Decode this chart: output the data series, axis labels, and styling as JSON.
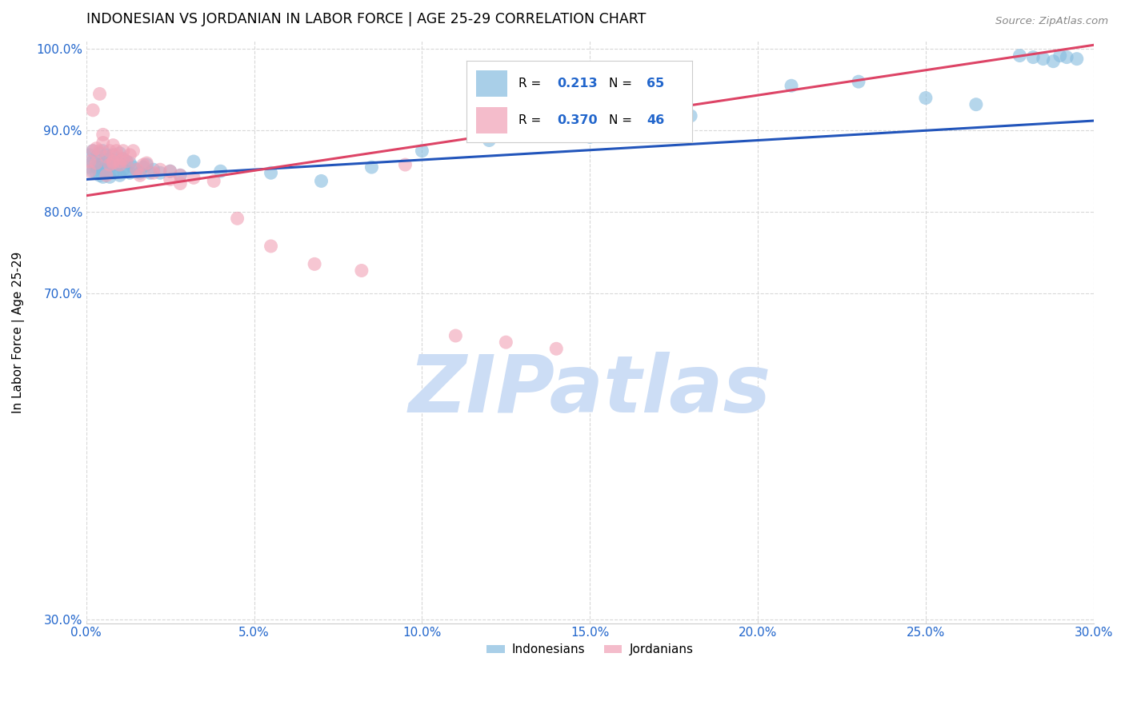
{
  "title": "INDONESIAN VS JORDANIAN IN LABOR FORCE | AGE 25-29 CORRELATION CHART",
  "source": "Source: ZipAtlas.com",
  "ylabel": "In Labor Force | Age 25-29",
  "xlim": [
    0.0,
    0.3
  ],
  "ylim": [
    0.295,
    1.01
  ],
  "xtick_labels": [
    "0.0%",
    "5.0%",
    "10.0%",
    "15.0%",
    "20.0%",
    "25.0%",
    "30.0%"
  ],
  "xtick_vals": [
    0.0,
    0.05,
    0.1,
    0.15,
    0.2,
    0.25,
    0.3
  ],
  "ytick_labels": [
    "30.0%",
    "70.0%",
    "80.0%",
    "90.0%",
    "100.0%"
  ],
  "ytick_vals": [
    0.3,
    0.7,
    0.8,
    0.9,
    1.0
  ],
  "blue_R": "0.213",
  "blue_N": "65",
  "pink_R": "0.370",
  "pink_N": "46",
  "blue_color": "#85bbdf",
  "pink_color": "#f0a0b5",
  "blue_line_color": "#2255bb",
  "pink_line_color": "#dd4466",
  "accent_color": "#2266cc",
  "watermark_color": "#ccddf5",
  "blue_scatter_x": [
    0.001,
    0.001,
    0.002,
    0.002,
    0.002,
    0.003,
    0.003,
    0.003,
    0.004,
    0.004,
    0.004,
    0.005,
    0.005,
    0.005,
    0.005,
    0.006,
    0.006,
    0.006,
    0.007,
    0.007,
    0.007,
    0.008,
    0.008,
    0.008,
    0.009,
    0.009,
    0.01,
    0.01,
    0.01,
    0.011,
    0.011,
    0.012,
    0.012,
    0.013,
    0.013,
    0.014,
    0.015,
    0.016,
    0.017,
    0.018,
    0.019,
    0.02,
    0.022,
    0.025,
    0.028,
    0.032,
    0.04,
    0.055,
    0.07,
    0.085,
    0.1,
    0.12,
    0.15,
    0.18,
    0.21,
    0.23,
    0.25,
    0.265,
    0.278,
    0.282,
    0.285,
    0.288,
    0.29,
    0.292,
    0.295
  ],
  "blue_scatter_y": [
    0.87,
    0.855,
    0.875,
    0.862,
    0.85,
    0.868,
    0.855,
    0.848,
    0.872,
    0.858,
    0.845,
    0.875,
    0.86,
    0.852,
    0.843,
    0.87,
    0.858,
    0.848,
    0.865,
    0.855,
    0.843,
    0.87,
    0.858,
    0.848,
    0.862,
    0.85,
    0.872,
    0.858,
    0.845,
    0.865,
    0.852,
    0.862,
    0.85,
    0.86,
    0.848,
    0.855,
    0.852,
    0.848,
    0.855,
    0.858,
    0.848,
    0.852,
    0.848,
    0.85,
    0.845,
    0.862,
    0.85,
    0.848,
    0.838,
    0.855,
    0.875,
    0.888,
    0.892,
    0.918,
    0.955,
    0.96,
    0.94,
    0.932,
    0.992,
    0.99,
    0.988,
    0.985,
    0.992,
    0.99,
    0.988
  ],
  "pink_scatter_x": [
    0.001,
    0.001,
    0.002,
    0.002,
    0.003,
    0.003,
    0.004,
    0.004,
    0.005,
    0.005,
    0.006,
    0.006,
    0.007,
    0.007,
    0.008,
    0.008,
    0.009,
    0.01,
    0.011,
    0.012,
    0.013,
    0.014,
    0.015,
    0.016,
    0.017,
    0.018,
    0.02,
    0.022,
    0.025,
    0.028,
    0.032,
    0.038,
    0.045,
    0.055,
    0.068,
    0.082,
    0.095,
    0.11,
    0.125,
    0.14,
    0.025,
    0.028,
    0.008,
    0.009,
    0.01,
    0.011
  ],
  "pink_scatter_y": [
    0.862,
    0.85,
    0.925,
    0.875,
    0.878,
    0.86,
    0.945,
    0.875,
    0.885,
    0.895,
    0.845,
    0.868,
    0.875,
    0.858,
    0.882,
    0.86,
    0.875,
    0.862,
    0.875,
    0.862,
    0.87,
    0.875,
    0.852,
    0.845,
    0.858,
    0.86,
    0.848,
    0.852,
    0.85,
    0.845,
    0.842,
    0.838,
    0.792,
    0.758,
    0.736,
    0.728,
    0.858,
    0.648,
    0.64,
    0.632,
    0.84,
    0.835,
    0.862,
    0.87,
    0.858,
    0.865
  ]
}
